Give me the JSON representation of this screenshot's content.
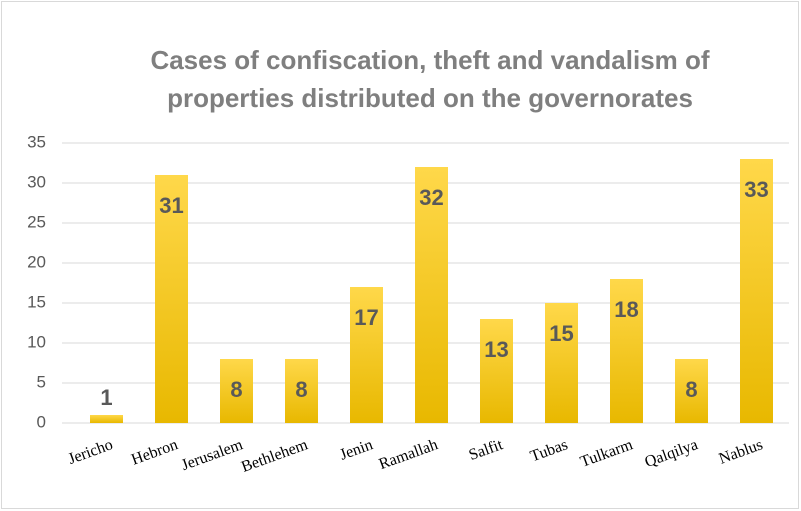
{
  "chart_data": {
    "type": "bar",
    "title": [
      "Cases of confiscation, theft and vandalism of",
      "properties distributed on the governorates"
    ],
    "categories": [
      "Jericho",
      "Hebron",
      "Jerusalem",
      "Bethlehem",
      "Jenin",
      "Ramallah",
      "Salfit",
      "Tubas",
      "Tulkarm",
      "Qalqilya",
      "Nablus"
    ],
    "values": [
      1,
      31,
      8,
      8,
      17,
      32,
      13,
      15,
      18,
      8,
      33
    ],
    "color": "#fdc51f",
    "ylim": [
      0,
      35
    ],
    "yticks": [
      0,
      5,
      10,
      15,
      20,
      25,
      30,
      35
    ],
    "grid": true
  }
}
